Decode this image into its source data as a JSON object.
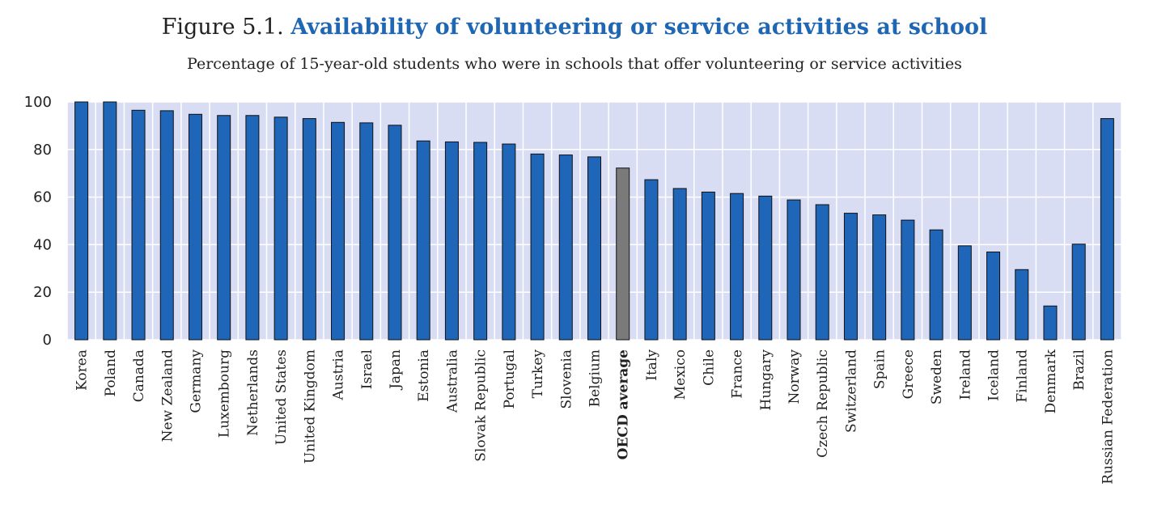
{
  "title": {
    "prefix": "Figure 5.1.",
    "text": "Availability of volunteering or service activities at school"
  },
  "subtitle": "Percentage of 15-year-old students who were in schools that offer volunteering or service activities",
  "colors": {
    "bar": "#1f65b8",
    "highlight_bar": "#7a7a7a",
    "plot_background": "#d9ddf4",
    "grid": "#ffffff",
    "bar_outline": "#111111"
  },
  "chart_data": {
    "type": "bar",
    "title": "Availability of volunteering or service activities at school",
    "subtitle": "Percentage of 15-year-old students who were in schools that offer volunteering or service activities",
    "xlabel": "",
    "ylabel": "",
    "ylim": [
      0,
      100
    ],
    "yticks": [
      0,
      20,
      40,
      60,
      80,
      100
    ],
    "grid": true,
    "highlight_category": "OECD average",
    "categories": [
      "Korea",
      "Poland",
      "Canada",
      "New Zealand",
      "Germany",
      "Luxembourg",
      "Netherlands",
      "United States",
      "United Kingdom",
      "Austria",
      "Israel",
      "Japan",
      "Estonia",
      "Australia",
      "Slovak Republic",
      "Portugal",
      "Turkey",
      "Slovenia",
      "Belgium",
      "OECD average",
      "Italy",
      "Mexico",
      "Chile",
      "France",
      "Hungary",
      "Norway",
      "Czech Republic",
      "Switzerland",
      "Spain",
      "Greece",
      "Sweden",
      "Ireland",
      "Iceland",
      "Finland",
      "Denmark",
      "Brazil",
      "Russian Federation"
    ],
    "values": [
      100,
      100,
      96.5,
      96.3,
      94.8,
      94.3,
      94.3,
      93.6,
      93.0,
      91.4,
      91.2,
      90.2,
      83.6,
      83.2,
      83.0,
      82.3,
      78.1,
      77.7,
      76.9,
      72.2,
      67.3,
      63.6,
      62.1,
      61.5,
      60.4,
      58.8,
      56.8,
      53.2,
      52.5,
      50.3,
      46.2,
      39.5,
      36.9,
      29.5,
      14.2,
      40.2,
      93.0
    ]
  }
}
